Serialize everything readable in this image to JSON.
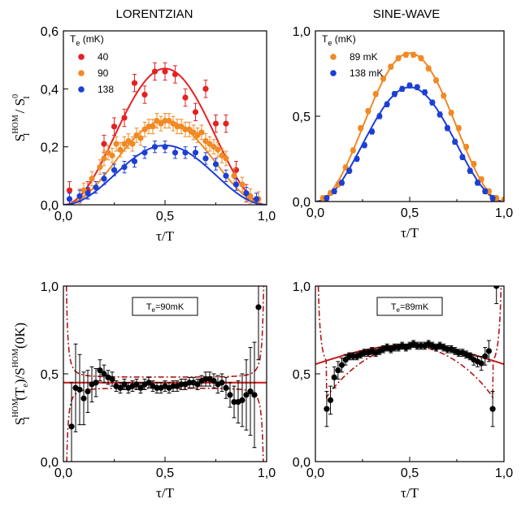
{
  "panel_titles": {
    "left": "LORENTZIAN",
    "right": "SINE-WAVE"
  },
  "ylabels": {
    "top": {
      "main": "S",
      "sup": "HOM",
      "sub": "I",
      "rest": " / S",
      "sup2": "0",
      "sub2": "I"
    },
    "bottom": {
      "main": "S",
      "sup": "HOM",
      "sub": "I",
      "rest": "(T",
      "sub_e": "e",
      "rest2": ")/S",
      "sup2": "HOM",
      "rest3": "(0K)"
    }
  },
  "xlabel": "τ/T",
  "chart_data": [
    {
      "id": "top-left",
      "type": "scatter",
      "title": "LORENTZIAN",
      "xlabel": "τ/T",
      "ylabel": "S_I^HOM/S_I^0",
      "xlim": [
        0,
        1
      ],
      "ylim": [
        0,
        0.6
      ],
      "xticks": [
        "0,0",
        "0,5",
        "1,0"
      ],
      "yticks": [
        "0,0",
        "0,2",
        "0,4",
        "0,6"
      ],
      "yticks_values": [
        0,
        0.2,
        0.4,
        0.6
      ],
      "legend": {
        "title_main": "T",
        "title_sub": "e",
        "title_unit": " (mK)",
        "placement": "top-left"
      },
      "series": [
        {
          "name": "40",
          "color": "#e32222",
          "amp": 0.47,
          "x": [
            0.03,
            0.12,
            0.2,
            0.25,
            0.3,
            0.35,
            0.4,
            0.45,
            0.5,
            0.55,
            0.6,
            0.65,
            0.7,
            0.75,
            0.8,
            0.85,
            0.9
          ],
          "y": [
            0.05,
            0.05,
            0.21,
            0.27,
            0.3,
            0.42,
            0.38,
            0.46,
            0.46,
            0.45,
            0.37,
            0.32,
            0.4,
            0.28,
            0.28,
            0.12,
            0.04
          ],
          "err": 0.03
        },
        {
          "name": "90",
          "color": "#f08a24",
          "amp": 0.29,
          "x": [
            0.08,
            0.1,
            0.14,
            0.18,
            0.2,
            0.22,
            0.24,
            0.26,
            0.28,
            0.3,
            0.32,
            0.34,
            0.36,
            0.38,
            0.4,
            0.42,
            0.44,
            0.46,
            0.48,
            0.5,
            0.52,
            0.54,
            0.56,
            0.58,
            0.6,
            0.62,
            0.64,
            0.66,
            0.68,
            0.7,
            0.72,
            0.74,
            0.76,
            0.78,
            0.8,
            0.84,
            0.88,
            0.92,
            0.96
          ],
          "y": [
            0.03,
            0.05,
            0.09,
            0.13,
            0.16,
            0.18,
            0.17,
            0.21,
            0.19,
            0.21,
            0.22,
            0.21,
            0.24,
            0.23,
            0.26,
            0.27,
            0.27,
            0.29,
            0.28,
            0.29,
            0.29,
            0.28,
            0.27,
            0.27,
            0.26,
            0.26,
            0.25,
            0.24,
            0.25,
            0.22,
            0.21,
            0.2,
            0.19,
            0.17,
            0.16,
            0.1,
            0.07,
            0.03,
            0.02
          ],
          "err": 0.025
        },
        {
          "name": "138",
          "color": "#1c3fd4",
          "amp": 0.205,
          "x": [
            0.03,
            0.08,
            0.12,
            0.16,
            0.2,
            0.25,
            0.3,
            0.35,
            0.4,
            0.45,
            0.5,
            0.55,
            0.6,
            0.65,
            0.7,
            0.75,
            0.8,
            0.85,
            0.9,
            0.95
          ],
          "y": [
            0.02,
            0.03,
            0.04,
            0.06,
            0.09,
            0.12,
            0.13,
            0.15,
            0.18,
            0.2,
            0.2,
            0.18,
            0.18,
            0.18,
            0.16,
            0.14,
            0.1,
            0.07,
            0.04,
            0.02
          ],
          "err": 0.02
        }
      ]
    },
    {
      "id": "top-right",
      "type": "scatter",
      "title": "SINE-WAVE",
      "xlabel": "τ/T",
      "xlim": [
        0,
        1
      ],
      "ylim": [
        0,
        1.0
      ],
      "xticks": [
        "0,0",
        "0,5",
        "1,0"
      ],
      "yticks": [
        "0,0",
        "0,5",
        "1,0"
      ],
      "yticks_values": [
        0,
        0.5,
        1.0
      ],
      "legend": {
        "title_main": "T",
        "title_sub": "e",
        "title_unit": " (mK)",
        "placement": "top-left"
      },
      "series": [
        {
          "name": "89 mK",
          "color": "#f08a24",
          "amp": 0.87,
          "x": [
            0.04,
            0.08,
            0.12,
            0.16,
            0.2,
            0.24,
            0.28,
            0.32,
            0.36,
            0.4,
            0.44,
            0.48,
            0.52,
            0.56,
            0.6,
            0.64,
            0.68,
            0.72,
            0.76,
            0.8,
            0.84,
            0.88,
            0.92,
            0.96,
            1.0
          ],
          "y": [
            0.02,
            0.05,
            0.1,
            0.2,
            0.3,
            0.43,
            0.53,
            0.63,
            0.72,
            0.79,
            0.84,
            0.86,
            0.86,
            0.84,
            0.78,
            0.71,
            0.62,
            0.52,
            0.43,
            0.32,
            0.22,
            0.13,
            0.06,
            0.02,
            0.01
          ],
          "err": 0.015
        },
        {
          "name": "138 mK",
          "color": "#1c3fd4",
          "amp": 0.67,
          "x": [
            0.06,
            0.1,
            0.14,
            0.18,
            0.22,
            0.26,
            0.3,
            0.34,
            0.38,
            0.42,
            0.46,
            0.5,
            0.54,
            0.58,
            0.62,
            0.66,
            0.7,
            0.74,
            0.78,
            0.82,
            0.86,
            0.9,
            0.94
          ],
          "y": [
            0.02,
            0.06,
            0.11,
            0.18,
            0.25,
            0.33,
            0.41,
            0.5,
            0.57,
            0.63,
            0.66,
            0.68,
            0.67,
            0.64,
            0.58,
            0.51,
            0.43,
            0.35,
            0.26,
            0.18,
            0.11,
            0.06,
            0.02
          ],
          "err": 0.015
        }
      ]
    },
    {
      "id": "bottom-left",
      "type": "scatter",
      "xlabel": "τ/T",
      "xlim": [
        0,
        1
      ],
      "ylim": [
        0,
        1.0
      ],
      "xticks": [
        "0,0",
        "0,5",
        "1,0"
      ],
      "yticks": [
        "0,0",
        "0,5",
        "1,0"
      ],
      "yticks_values": [
        0,
        0.5,
        1.0
      ],
      "annotation": "Tₑ=90mK",
      "annotation_parts": {
        "main": "T",
        "sub": "e",
        "rest": "=90mK"
      },
      "hline": 0.45,
      "band": {
        "center": 0.45,
        "k": 0.0018
      },
      "series": [
        {
          "name": "",
          "color": "#000000",
          "x": [
            0.04,
            0.06,
            0.08,
            0.1,
            0.12,
            0.14,
            0.16,
            0.18,
            0.2,
            0.22,
            0.24,
            0.26,
            0.28,
            0.3,
            0.32,
            0.34,
            0.36,
            0.38,
            0.4,
            0.42,
            0.44,
            0.46,
            0.48,
            0.5,
            0.52,
            0.54,
            0.56,
            0.58,
            0.6,
            0.62,
            0.64,
            0.66,
            0.68,
            0.7,
            0.72,
            0.74,
            0.76,
            0.78,
            0.8,
            0.82,
            0.84,
            0.86,
            0.88,
            0.9,
            0.92,
            0.94,
            0.96
          ],
          "y": [
            0.2,
            0.42,
            0.41,
            0.36,
            0.4,
            0.44,
            0.45,
            0.52,
            0.5,
            0.48,
            0.47,
            0.43,
            0.42,
            0.44,
            0.42,
            0.43,
            0.44,
            0.42,
            0.44,
            0.45,
            0.43,
            0.42,
            0.42,
            0.43,
            0.42,
            0.43,
            0.43,
            0.44,
            0.44,
            0.45,
            0.45,
            0.44,
            0.46,
            0.47,
            0.47,
            0.46,
            0.44,
            0.45,
            0.42,
            0.38,
            0.34,
            0.34,
            0.35,
            0.38,
            0.4,
            0.38,
            0.88
          ],
          "err": [
            0.25,
            0.25,
            0.2,
            0.15,
            0.12,
            0.1,
            0.08,
            0.06,
            0.05,
            0.04,
            0.04,
            0.03,
            0.03,
            0.03,
            0.03,
            0.03,
            0.03,
            0.03,
            0.03,
            0.03,
            0.03,
            0.03,
            0.03,
            0.03,
            0.03,
            0.03,
            0.03,
            0.03,
            0.03,
            0.03,
            0.03,
            0.03,
            0.03,
            0.04,
            0.04,
            0.04,
            0.05,
            0.05,
            0.06,
            0.07,
            0.09,
            0.12,
            0.15,
            0.2,
            0.25,
            0.3,
            0.3
          ]
        }
      ]
    },
    {
      "id": "bottom-right",
      "type": "scatter",
      "xlabel": "τ/T",
      "xlim": [
        0,
        1
      ],
      "ylim": [
        0,
        1.0
      ],
      "xticks": [
        "0,0",
        "0,5",
        "1,0"
      ],
      "yticks": [
        "0,0",
        "0,5",
        "1,0"
      ],
      "yticks_values": [
        0,
        0.5,
        1.0
      ],
      "annotation": "Tₑ=89mK",
      "annotation_parts": {
        "main": "T",
        "sub": "e",
        "rest": "=89mK"
      },
      "curve_peak": 0.665,
      "curve_edge": 0.555,
      "series": [
        {
          "name": "",
          "color": "#000000",
          "x": [
            0.06,
            0.08,
            0.1,
            0.12,
            0.14,
            0.16,
            0.18,
            0.2,
            0.22,
            0.24,
            0.26,
            0.28,
            0.3,
            0.32,
            0.34,
            0.36,
            0.38,
            0.4,
            0.42,
            0.44,
            0.46,
            0.48,
            0.5,
            0.52,
            0.54,
            0.56,
            0.58,
            0.6,
            0.62,
            0.64,
            0.66,
            0.68,
            0.7,
            0.72,
            0.74,
            0.76,
            0.78,
            0.8,
            0.82,
            0.84,
            0.86,
            0.88,
            0.9,
            0.92,
            0.94,
            0.96
          ],
          "y": [
            0.3,
            0.35,
            0.48,
            0.52,
            0.55,
            0.58,
            0.6,
            0.6,
            0.6,
            0.61,
            0.62,
            0.62,
            0.63,
            0.62,
            0.63,
            0.64,
            0.65,
            0.64,
            0.65,
            0.65,
            0.66,
            0.65,
            0.66,
            0.67,
            0.66,
            0.66,
            0.66,
            0.67,
            0.66,
            0.65,
            0.66,
            0.65,
            0.64,
            0.64,
            0.63,
            0.62,
            0.62,
            0.61,
            0.6,
            0.58,
            0.57,
            0.56,
            0.6,
            0.63,
            0.3,
            1.0
          ],
          "err": [
            0.1,
            0.08,
            0.06,
            0.05,
            0.04,
            0.03,
            0.02,
            0.02,
            0.02,
            0.02,
            0.02,
            0.02,
            0.02,
            0.02,
            0.02,
            0.02,
            0.02,
            0.02,
            0.02,
            0.02,
            0.02,
            0.02,
            0.02,
            0.02,
            0.02,
            0.02,
            0.02,
            0.02,
            0.02,
            0.02,
            0.02,
            0.02,
            0.02,
            0.02,
            0.02,
            0.02,
            0.02,
            0.02,
            0.02,
            0.03,
            0.03,
            0.04,
            0.05,
            0.06,
            0.1,
            0.1
          ]
        }
      ]
    }
  ]
}
